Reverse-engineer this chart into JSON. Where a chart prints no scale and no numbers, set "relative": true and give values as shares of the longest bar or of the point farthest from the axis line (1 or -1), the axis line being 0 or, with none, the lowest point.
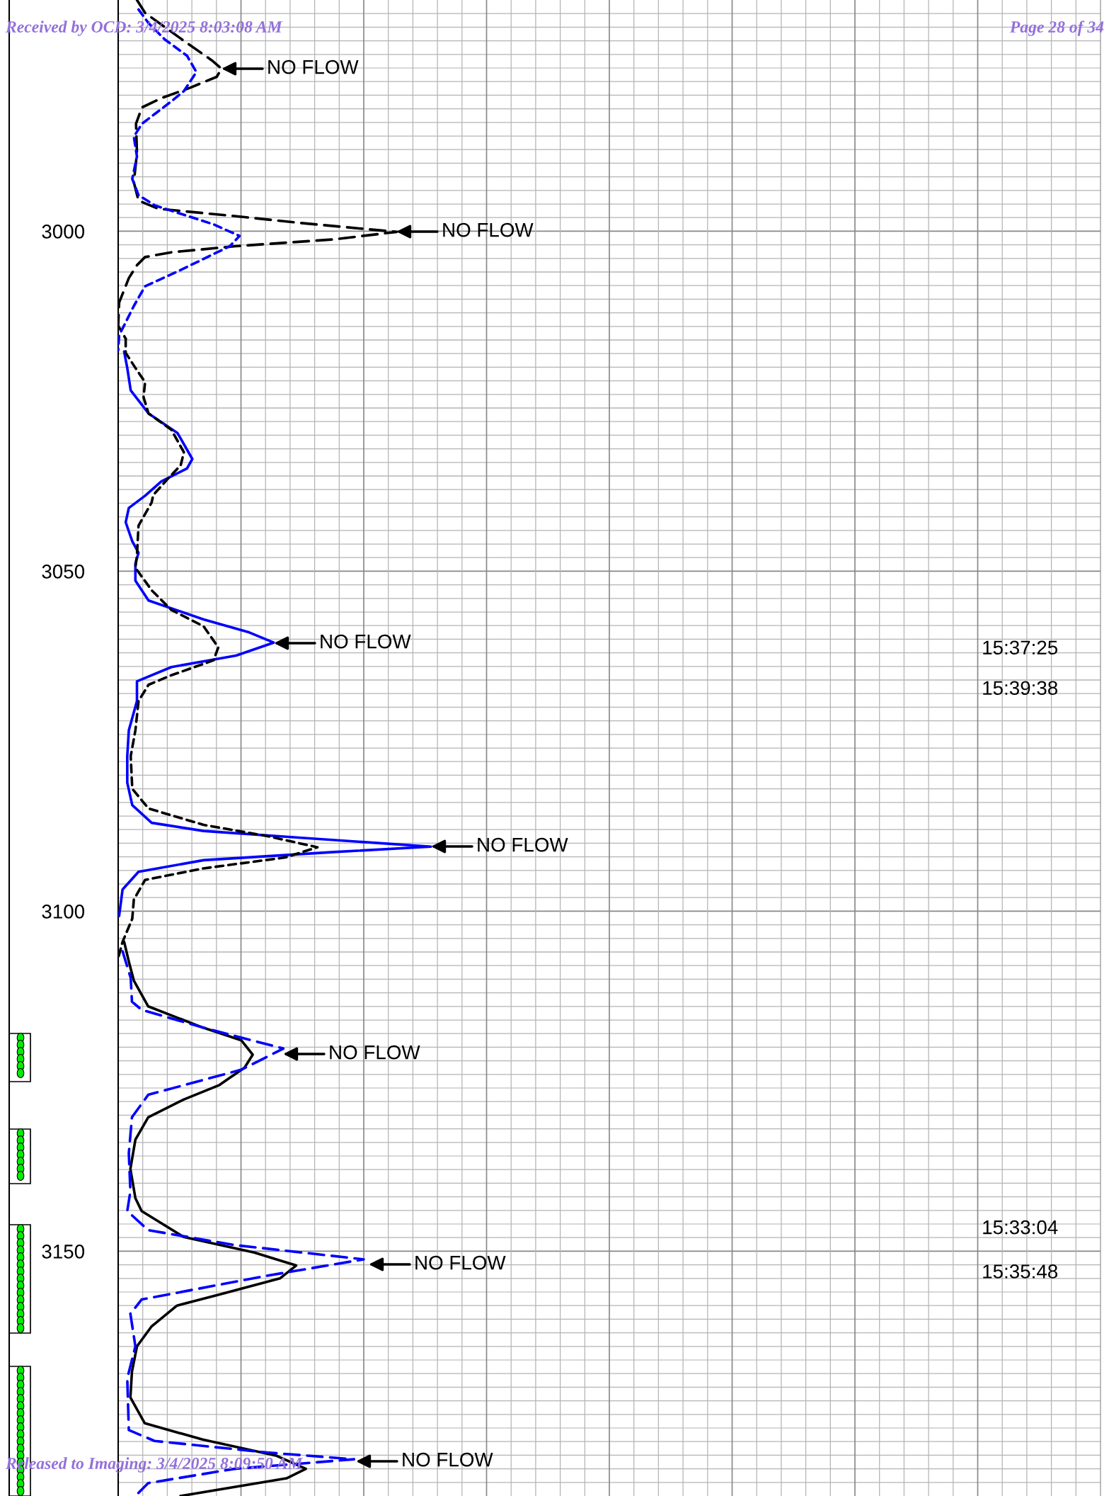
{
  "chart_data": {
    "type": "line",
    "orientation": "horizontal",
    "relative": true,
    "grid": true,
    "ylim": [
      3186,
      2966
    ],
    "yticks": [
      {
        "value": 2968,
        "label": null
      },
      {
        "value": 2970,
        "label": null
      },
      {
        "value": 2972,
        "label": null
      },
      {
        "value": 2974,
        "label": null
      },
      {
        "value": 2976,
        "label": null
      },
      {
        "value": 2978,
        "label": null
      },
      {
        "value": 2980,
        "label": null
      },
      {
        "value": 2982,
        "label": null
      },
      {
        "value": 2984,
        "label": null
      },
      {
        "value": 2986,
        "label": null
      },
      {
        "value": 2988,
        "label": null
      },
      {
        "value": 2990,
        "label": null
      },
      {
        "value": 2992,
        "label": null
      },
      {
        "value": 2994,
        "label": null
      },
      {
        "value": 2996,
        "label": null
      },
      {
        "value": 2998,
        "label": null
      },
      3000,
      {
        "value": 3002,
        "label": null
      },
      {
        "value": 3004,
        "label": null
      },
      {
        "value": 3006,
        "label": null
      },
      {
        "value": 3008,
        "label": null
      },
      {
        "value": 3010,
        "label": null
      },
      {
        "value": 3012,
        "label": null
      },
      {
        "value": 3014,
        "label": null
      },
      {
        "value": 3016,
        "label": null
      },
      {
        "value": 3018,
        "label": null
      },
      {
        "value": 3020,
        "label": null
      },
      {
        "value": 3022,
        "label": null
      },
      {
        "value": 3024,
        "label": null
      },
      {
        "value": 3026,
        "label": null
      },
      {
        "value": 3028,
        "label": null
      },
      {
        "value": 3030,
        "label": null
      },
      {
        "value": 3032,
        "label": null
      },
      {
        "value": 3034,
        "label": null
      },
      {
        "value": 3036,
        "label": null
      },
      {
        "value": 3038,
        "label": null
      },
      {
        "value": 3040,
        "label": null
      },
      {
        "value": 3042,
        "label": null
      },
      {
        "value": 3044,
        "label": null
      },
      {
        "value": 3046,
        "label": null
      },
      {
        "value": 3048,
        "label": null
      },
      3050,
      {
        "value": 3052,
        "label": null
      },
      {
        "value": 3054,
        "label": null
      },
      {
        "value": 3056,
        "label": null
      },
      {
        "value": 3058,
        "label": null
      },
      {
        "value": 3060,
        "label": null
      },
      {
        "value": 3062,
        "label": null
      },
      {
        "value": 3064,
        "label": null
      },
      {
        "value": 3066,
        "label": null
      },
      {
        "value": 3068,
        "label": null
      },
      {
        "value": 3070,
        "label": null
      },
      {
        "value": 3072,
        "label": null
      },
      {
        "value": 3074,
        "label": null
      },
      {
        "value": 3076,
        "label": null
      },
      {
        "value": 3078,
        "label": null
      },
      {
        "value": 3080,
        "label": null
      },
      {
        "value": 3082,
        "label": null
      },
      {
        "value": 3084,
        "label": null
      },
      {
        "value": 3086,
        "label": null
      },
      {
        "value": 3088,
        "label": null
      },
      {
        "value": 3090,
        "label": null
      },
      {
        "value": 3092,
        "label": null
      },
      {
        "value": 3094,
        "label": null
      },
      {
        "value": 3096,
        "label": null
      },
      {
        "value": 3098,
        "label": null
      },
      3100,
      {
        "value": 3102,
        "label": null
      },
      {
        "value": 3104,
        "label": null
      },
      {
        "value": 3106,
        "label": null
      },
      {
        "value": 3108,
        "label": null
      },
      {
        "value": 3110,
        "label": null
      },
      {
        "value": 3112,
        "label": null
      },
      {
        "value": 3114,
        "label": null
      },
      {
        "value": 3116,
        "label": null
      },
      {
        "value": 3118,
        "label": null
      },
      {
        "value": 3120,
        "label": null
      },
      {
        "value": 3122,
        "label": null
      },
      {
        "value": 3124,
        "label": null
      },
      {
        "value": 3126,
        "label": null
      },
      {
        "value": 3128,
        "label": null
      },
      {
        "value": 3130,
        "label": null
      },
      {
        "value": 3132,
        "label": null
      },
      {
        "value": 3134,
        "label": null
      },
      {
        "value": 3136,
        "label": null
      },
      {
        "value": 3138,
        "label": null
      },
      {
        "value": 3140,
        "label": null
      },
      {
        "value": 3142,
        "label": null
      },
      {
        "value": 3144,
        "label": null
      },
      {
        "value": 3146,
        "label": null
      },
      {
        "value": 3148,
        "label": null
      },
      3150,
      {
        "value": 3152,
        "label": null
      },
      {
        "value": 3154,
        "label": null
      },
      {
        "value": 3156,
        "label": null
      },
      {
        "value": 3158,
        "label": null
      },
      {
        "value": 3160,
        "label": null
      },
      {
        "value": 3162,
        "label": null
      },
      {
        "value": 3164,
        "label": null
      },
      {
        "value": 3166,
        "label": null
      },
      {
        "value": 3168,
        "label": null
      },
      {
        "value": 3170,
        "label": null
      },
      {
        "value": 3172,
        "label": null
      },
      {
        "value": 3174,
        "label": null
      },
      {
        "value": 3176,
        "label": null
      },
      {
        "value": 3178,
        "label": null
      },
      {
        "value": 3180,
        "label": null
      },
      {
        "value": 3182,
        "label": null
      },
      {
        "value": 3184,
        "label": null
      }
    ],
    "series": [
      {
        "color": "#000000",
        "line_style": "dashed",
        "x": [
          2966,
          2967.9,
          2972,
          2974.9,
          2976.1,
          2977.3,
          2978.9,
          2980.4,
          2981.8,
          2984.2,
          2988.5,
          2992.8,
          2995.5,
          2996.7,
          2997.8,
          2998.8,
          3000.1,
          3001.2,
          3002.2,
          3003.1,
          3003.8,
          3005,
          3006.9,
          3010.5,
          3013.9,
          3015.8
        ],
        "values": [
          0.06,
          0.086,
          0.21,
          0.3,
          0.33,
          0.315,
          0.23,
          0.14,
          0.076,
          0.057,
          0.06,
          0.05,
          0.065,
          0.128,
          0.377,
          0.585,
          0.89,
          0.69,
          0.377,
          0.17,
          0.086,
          0.06,
          0.034,
          0.003,
          0,
          0.024
        ]
      },
      {
        "color": "#0000ff",
        "line_style": "dotted",
        "x": [
          2967.4,
          2969.4,
          2971.8,
          2974.2,
          2976.6,
          2979.4,
          2980.9,
          2984.2,
          2986.1,
          2989,
          2992.3,
          2994.7,
          2996.2,
          2999,
          3000.7,
          3002.2,
          3005.7,
          3008.1,
          3011,
          3013.4,
          3015.3,
          3017.5
        ],
        "values": [
          0.065,
          0.097,
          0.149,
          0.22,
          0.25,
          0.21,
          0.17,
          0.076,
          0.05,
          0.06,
          0.045,
          0.065,
          0.117,
          0.305,
          0.388,
          0.357,
          0.2,
          0.086,
          0.05,
          0.024,
          0.003,
          0
        ]
      },
      {
        "color": "#0000ff",
        "line_style": "solid",
        "x": [
          3017.7,
          3020.1,
          3023.4,
          3026.8,
          3029.7,
          3033.5,
          3034.9,
          3036.8,
          3038.9,
          3040.7,
          3042.8,
          3045.6,
          3047.3,
          3048.9,
          3051.4,
          3054.3,
          3057.1,
          3059,
          3060.5,
          3062.4,
          3064.1,
          3066.2,
          3069.1,
          3073.4,
          3077.2,
          3081.1,
          3084.4,
          3087,
          3088.2,
          3089.2,
          3090.5,
          3091.3,
          3092.5,
          3094.2,
          3096.8,
          3100.7
        ],
        "values": [
          0.019,
          0.029,
          0.04,
          0.097,
          0.19,
          0.237,
          0.22,
          0.138,
          0.086,
          0.034,
          0.024,
          0.045,
          0.065,
          0.055,
          0.055,
          0.097,
          0.273,
          0.419,
          0.497,
          0.377,
          0.17,
          0.06,
          0.06,
          0.034,
          0.029,
          0.029,
          0.045,
          0.107,
          0.273,
          0.585,
          1.0,
          0.689,
          0.273,
          0.065,
          0.014,
          0.003
        ]
      },
      {
        "color": "#000000",
        "line_style": "dotted",
        "x": [
          3015.8,
          3017.9,
          3020.1,
          3022.2,
          3024.4,
          3026.8,
          3029.2,
          3032.5,
          3034.4,
          3036.4,
          3038.8,
          3039.9,
          3043.3,
          3047.6,
          3049.5,
          3052.8,
          3055.7,
          3058.1,
          3061.2,
          3063.1,
          3065.3,
          3066.7,
          3069.1,
          3073.4,
          3077.2,
          3082,
          3084.9,
          3087.3,
          3089,
          3090.6,
          3092.1,
          3093.7,
          3095.4,
          3098.3,
          3101.1,
          3104.5,
          3106.9
        ],
        "values": [
          0.024,
          0.024,
          0.055,
          0.086,
          0.081,
          0.097,
          0.17,
          0.21,
          0.2,
          0.159,
          0.112,
          0.107,
          0.065,
          0.06,
          0.055,
          0.107,
          0.17,
          0.273,
          0.32,
          0.305,
          0.17,
          0.097,
          0.065,
          0.055,
          0.04,
          0.045,
          0.097,
          0.273,
          0.481,
          0.637,
          0.534,
          0.273,
          0.086,
          0.05,
          0.045,
          0.014,
          0
        ]
      },
      {
        "color": "#000000",
        "line_style": "solid",
        "x": [
          3104.5,
          3107.4,
          3110.2,
          3114,
          3117.1,
          3119,
          3121.1,
          3123,
          3125.6,
          3127.7,
          3130.3,
          3133.6,
          3137.9,
          3142.2,
          3144.1,
          3147.9,
          3150.2,
          3152.1,
          3154,
          3156.4,
          3158,
          3161.1,
          3164,
          3167.7,
          3171.5,
          3175.3,
          3177.7,
          3180.1,
          3182,
          3183.4,
          3186
        ],
        "values": [
          0.019,
          0.034,
          0.05,
          0.096,
          0.27,
          0.394,
          0.43,
          0.404,
          0.322,
          0.209,
          0.096,
          0.055,
          0.039,
          0.055,
          0.075,
          0.209,
          0.435,
          0.569,
          0.517,
          0.322,
          0.188,
          0.106,
          0.06,
          0.044,
          0.039,
          0.085,
          0.27,
          0.507,
          0.6,
          0.538,
          0.199
        ]
      },
      {
        "color": "#0000ff",
        "line_style": "dashed",
        "x": [
          3105.9,
          3109.8,
          3113.3,
          3114.5,
          3117.1,
          3120.2,
          3123.3,
          3127,
          3130.3,
          3135.6,
          3141.2,
          3144.1,
          3146.9,
          3149.1,
          3151.2,
          3153.6,
          3157.1,
          3159.2,
          3164,
          3168.7,
          3176.3,
          3177.9,
          3179.6,
          3180.6,
          3182,
          3184.1,
          3186
        ],
        "values": [
          0.014,
          0.04,
          0.044,
          0.075,
          0.27,
          0.528,
          0.394,
          0.096,
          0.044,
          0.034,
          0.039,
          0.029,
          0.096,
          0.373,
          0.785,
          0.476,
          0.075,
          0.039,
          0.055,
          0.029,
          0.034,
          0.116,
          0.476,
          0.754,
          0.373,
          0.096,
          0.055
        ]
      }
    ],
    "annotations": [
      "NO FLOW",
      "NO FLOW",
      "NO FLOW",
      "NO FLOW",
      "NO FLOW",
      "NO FLOW",
      "NO FLOW",
      "15:37:25",
      "15:39:38",
      "15:33:04",
      "15:35:48",
      "Received by OCD: 3/4/2025 8:03:08 AM",
      "Page 28 of 34",
      "Released to Imaging: 3/4/2025 8:09:50 AM"
    ]
  }
}
